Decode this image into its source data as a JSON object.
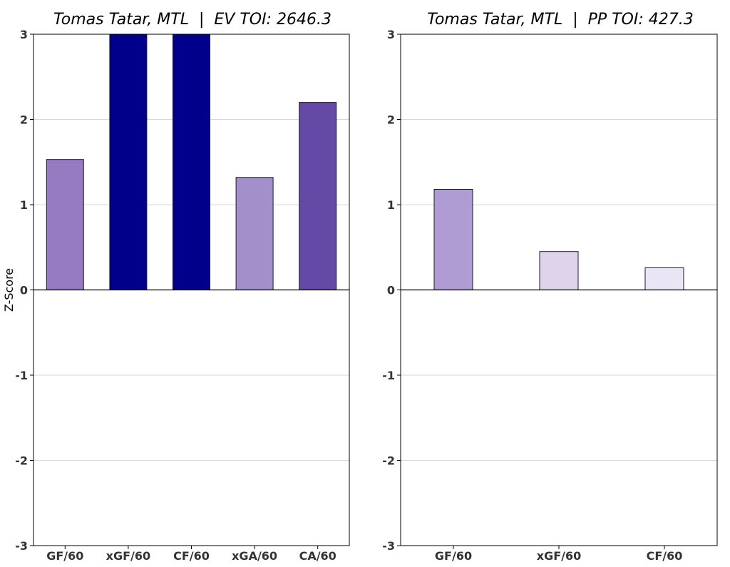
{
  "chart_data": [
    {
      "type": "bar",
      "title": "Tomas Tatar, MTL  |  EV TOI: 2646.3",
      "xlabel": "",
      "ylabel": "Z-Score",
      "ylim": [
        -3,
        3
      ],
      "yticks": [
        -3,
        -2,
        -1,
        0,
        1,
        2,
        3
      ],
      "grid": true,
      "categories": [
        "GF/60",
        "xGF/60",
        "CF/60",
        "xGA/60",
        "CA/60"
      ],
      "values": [
        1.53,
        3.0,
        3.0,
        1.32,
        2.2
      ],
      "colors": [
        "#957bc2",
        "#00008b",
        "#00008b",
        "#a38fca",
        "#6449a6"
      ]
    },
    {
      "type": "bar",
      "title": "Tomas Tatar, MTL  |  PP TOI: 427.3",
      "xlabel": "",
      "ylabel": "",
      "ylim": [
        -3,
        3
      ],
      "yticks": [
        -3,
        -2,
        -1,
        0,
        1,
        2,
        3
      ],
      "grid": true,
      "categories": [
        "GF/60",
        "xGF/60",
        "CF/60"
      ],
      "values": [
        1.18,
        0.45,
        0.26
      ],
      "colors": [
        "#af9cd3",
        "#ddd4eb",
        "#e9e5f4"
      ]
    }
  ]
}
